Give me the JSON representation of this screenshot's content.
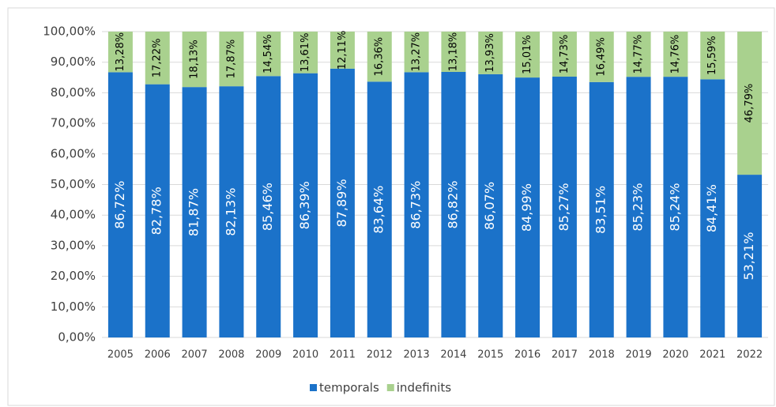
{
  "chart_data": {
    "type": "stacked_bar",
    "categories": [
      "2005",
      "2006",
      "2007",
      "2008",
      "2009",
      "2010",
      "2011",
      "2012",
      "2013",
      "2014",
      "2015",
      "2016",
      "2017",
      "2018",
      "2019",
      "2020",
      "2021",
      "2022"
    ],
    "series": [
      {
        "name": "temporals",
        "color": "#1b72c9",
        "values": [
          86.72,
          82.78,
          81.87,
          82.13,
          85.46,
          86.39,
          87.89,
          83.64,
          86.73,
          86.82,
          86.07,
          84.99,
          85.27,
          83.51,
          85.23,
          85.24,
          84.41,
          53.21
        ],
        "value_labels": [
          "86,72%",
          "82,78%",
          "81,87%",
          "82,13%",
          "85,46%",
          "86,39%",
          "87,89%",
          "83,64%",
          "86,73%",
          "86,82%",
          "86,07%",
          "84,99%",
          "85,27%",
          "83,51%",
          "85,23%",
          "85,24%",
          "84,41%",
          "53,21%"
        ]
      },
      {
        "name": "indefinits",
        "color": "#a9d18e",
        "values": [
          13.28,
          17.22,
          18.13,
          17.87,
          14.54,
          13.61,
          12.11,
          16.36,
          13.27,
          13.18,
          13.93,
          15.01,
          14.73,
          16.49,
          14.77,
          14.76,
          15.59,
          46.79
        ],
        "value_labels": [
          "13,28%",
          "17,22%",
          "18,13%",
          "17,87%",
          "14,54%",
          "13,61%",
          "12,11%",
          "16,36%",
          "13,27%",
          "13,18%",
          "13,93%",
          "15,01%",
          "14,73%",
          "16,49%",
          "14,77%",
          "14,76%",
          "15,59%",
          "46,79%"
        ]
      }
    ],
    "ylim": [
      0,
      100
    ],
    "yticks": [
      {
        "value": 0,
        "label": "0,00%"
      },
      {
        "value": 10,
        "label": "10,00%"
      },
      {
        "value": 20,
        "label": "20,00%"
      },
      {
        "value": 30,
        "label": "30,00%"
      },
      {
        "value": 40,
        "label": "40,00%"
      },
      {
        "value": 50,
        "label": "50,00%"
      },
      {
        "value": 60,
        "label": "60,00%"
      },
      {
        "value": 70,
        "label": "70,00%"
      },
      {
        "value": 80,
        "label": "80,00%"
      },
      {
        "value": 90,
        "label": "90,00%"
      },
      {
        "value": 100,
        "label": "100,00%"
      }
    ],
    "grid": true,
    "legend": "bottom"
  }
}
